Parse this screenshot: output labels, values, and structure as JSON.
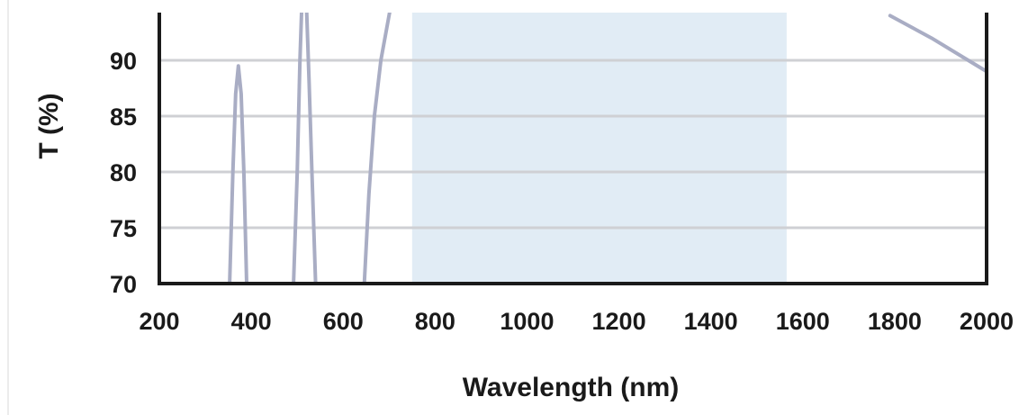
{
  "chart_data": {
    "type": "line",
    "title": "",
    "xlabel": "Wavelength (nm)",
    "ylabel": "T (%)",
    "xlim": [
      200,
      2000
    ],
    "ylim": [
      70,
      94
    ],
    "x_ticks": [
      200,
      400,
      600,
      800,
      1000,
      1200,
      1400,
      1600,
      1800,
      2000
    ],
    "y_ticks": [
      70,
      75,
      80,
      85,
      90
    ],
    "grid": "horizontal",
    "highlight_band": {
      "x_start": 750,
      "x_end": 1565,
      "color": "#e1ecf5"
    },
    "series": [
      {
        "color": "#a9adc4",
        "segments": [
          [
            [
              353,
              70
            ],
            [
              360,
              80
            ],
            [
              366,
              87
            ],
            [
              372,
              89.5
            ],
            [
              378,
              87
            ],
            [
              384,
              80
            ],
            [
              390,
              70
            ]
          ],
          [
            [
              492,
              70
            ],
            [
              500,
              80
            ],
            [
              506,
              90
            ],
            [
              510,
              95
            ]
          ],
          [
            [
              520,
              95
            ],
            [
              526,
              88
            ],
            [
              532,
              80
            ],
            [
              540,
              70
            ]
          ],
          [
            [
              646,
              70
            ],
            [
              656,
              78
            ],
            [
              668,
              85
            ],
            [
              682,
              90
            ],
            [
              702,
              94.5
            ]
          ],
          [
            [
              1790,
              94
            ],
            [
              1880,
              92
            ],
            [
              1960,
              90
            ],
            [
              2000,
              89
            ]
          ]
        ]
      }
    ]
  },
  "colors": {
    "axis": "#1a1a1a",
    "grid": "#cfd0d4",
    "curve": "#a9adc4",
    "band": "#e1ecf5"
  }
}
